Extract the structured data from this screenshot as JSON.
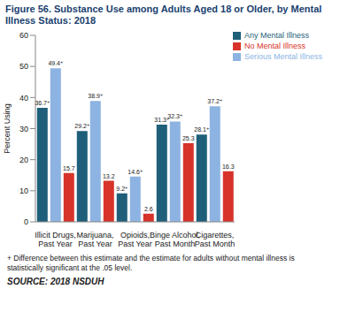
{
  "chart_data": {
    "type": "bar",
    "title": "Figure 56. Substance Use among Adults Aged 18 or Older, by Mental Illness Status: 2018",
    "y_label": "Percent Using",
    "categories": [
      "Illicit Drugs, Past Year",
      "Marijuana, Past Year",
      "Opioids, Past Year",
      "Binge Alcohol, Past Month",
      "Cigarettes, Past Month"
    ],
    "series": [
      {
        "name": "Any Mental Illness",
        "color": "#1f5f7a",
        "values": [
          36.7,
          29.2,
          9.2,
          31.3,
          28.1
        ],
        "value_labels": [
          "36.7+",
          "29.2+",
          "9.2+",
          "31.3+",
          "28.1+"
        ]
      },
      {
        "name": "Serious Mental Illness",
        "color": "#8db3e2",
        "values": [
          49.4,
          38.9,
          14.6,
          32.3,
          37.2
        ],
        "value_labels": [
          "49.4+",
          "38.9+",
          "14.6+",
          "32.3+",
          "37.2+"
        ]
      },
      {
        "name": "No Mental Illness",
        "color": "#d7332a",
        "values": [
          15.7,
          13.2,
          2.6,
          25.3,
          16.3
        ],
        "value_labels": [
          "15.7",
          "13.2",
          "2.6",
          "25.3",
          "16.3"
        ]
      }
    ],
    "ylim": [
      0,
      60
    ],
    "yticks": [
      0,
      10,
      20,
      30,
      40,
      50,
      60
    ],
    "grid": false,
    "legend": "upper right",
    "data_labels": true,
    "footnote": "+ Difference between this estimate and the estimate for adults without mental illness is statistically significant at the .05 level.",
    "source": "SOURCE: 2018 NSDUH"
  }
}
